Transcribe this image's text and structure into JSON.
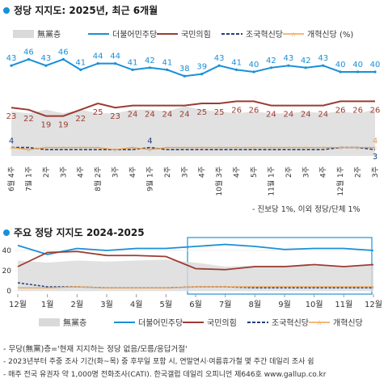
{
  "colors": {
    "no_party": "#d9d9d9",
    "dem": "#1a8fd8",
    "ppp": "#9c3b32",
    "rebuild": "#1f3f7a",
    "reform": "#f0a04b",
    "accent": "#1a8fd8",
    "frame": "#4aa8de"
  },
  "chart1": {
    "title": "정당 지지도: 2025년, 최근 6개월",
    "legend": [
      "無黨층",
      "더불어민주당",
      "국민의힘",
      "조국혁신당",
      "개혁신당 (%)"
    ],
    "weeks": [
      "6월 4주",
      "7월 1주",
      "2주",
      "3주",
      "4주",
      "8월 2주",
      "3주",
      "4주",
      "9월 1주",
      "2주",
      "3주",
      "4주",
      "10월 3주",
      "4주",
      "5주",
      "11월 1주",
      "2주",
      "3주",
      "4주",
      "12월 1주",
      "2주",
      "3주"
    ],
    "dem_labels": [
      "43",
      "46",
      "43",
      "46",
      "41",
      "44",
      "44",
      "41",
      "42",
      "41",
      "38",
      "39",
      "43",
      "41",
      "40",
      "42",
      "43",
      "42",
      "43",
      "40",
      "40"
    ],
    "ppp_labels": [
      "23",
      "22",
      "19",
      "19",
      "22",
      "25",
      "23",
      "24",
      "24",
      "24",
      "24",
      "25",
      "25",
      "26",
      "26",
      "24",
      "24",
      "24",
      "24",
      "26",
      "26"
    ],
    "rebuild_labels": [
      "4",
      "4",
      "3"
    ],
    "reform_labels": [
      "4"
    ],
    "footnote": "- 진보당 1%, 이외 정당/단체 1%"
  },
  "chart2": {
    "title": "주요 정당 지지도 2024-2025",
    "legend": [
      "無黨층",
      "더불어민주당",
      "국민의힘",
      "조국혁신당",
      "개혁신당"
    ],
    "y_ticks": [
      "40",
      "20",
      "0"
    ],
    "months": [
      "12월",
      "1월",
      "2월",
      "3월",
      "4월",
      "5월",
      "6월",
      "7월",
      "8월",
      "9월",
      "10월",
      "11월",
      "12월"
    ]
  },
  "notes": [
    "- 무당(無黨)층='현재 지지하는 정당 없음/모름/응답거절'",
    "- 2023년부터 주중 조사 기간(화~목) 중 후무일 포함 시, 연말연시·여름휴가철 몇 주간 데일리 조사 쉼",
    "- 매주 전국 유권자 약 1,000명 전화조사(CATI). 한국갤럽 데일리 오피니언 제646호 www.gallup.co.kr"
  ],
  "chart_data": [
    {
      "type": "line",
      "title": "정당 지지도: 2025년, 최근 6개월",
      "categories": [
        "6월 4주",
        "7월 1주",
        "7월 2주",
        "7월 3주",
        "7월 4주",
        "8월 2주",
        "8월 3주",
        "8월 4주",
        "9월 1주",
        "9월 2주",
        "9월 3주",
        "9월 4주",
        "10월 3주",
        "10월 4주",
        "10월 5주",
        "11월 1주",
        "11월 2주",
        "11월 3주",
        "11월 4주",
        "12월 1주",
        "12월 2주",
        "12월 3주"
      ],
      "series": [
        {
          "name": "無黨층",
          "type": "area",
          "values": [
            25,
            24,
            26,
            24,
            26,
            24,
            24,
            26,
            26,
            25,
            28,
            26,
            25,
            24,
            25,
            24,
            24,
            25,
            24,
            25,
            24,
            26
          ]
        },
        {
          "name": "더불어민주당",
          "values": [
            43,
            46,
            43,
            46,
            41,
            44,
            44,
            41,
            42,
            41,
            38,
            39,
            43,
            41,
            40,
            42,
            43,
            42,
            43,
            40,
            40,
            40
          ]
        },
        {
          "name": "국민의힘",
          "values": [
            23,
            22,
            19,
            19,
            22,
            25,
            23,
            24,
            24,
            24,
            24,
            25,
            25,
            26,
            26,
            24,
            24,
            24,
            24,
            26,
            26,
            26
          ]
        },
        {
          "name": "조국혁신당",
          "values": [
            4,
            4,
            3,
            3,
            3,
            3,
            3,
            3,
            4,
            3,
            3,
            3,
            3,
            3,
            3,
            3,
            3,
            3,
            3,
            4,
            4,
            3
          ]
        },
        {
          "name": "개혁신당",
          "values": [
            4,
            3,
            4,
            4,
            4,
            4,
            3,
            4,
            3,
            4,
            4,
            4,
            4,
            4,
            4,
            4,
            4,
            4,
            4,
            4,
            4,
            4
          ]
        }
      ],
      "ylim": [
        0,
        60
      ]
    },
    {
      "type": "line",
      "title": "주요 정당 지지도 2024-2025",
      "categories": [
        "12월",
        "1월",
        "2월",
        "3월",
        "4월",
        "5월",
        "6월",
        "7월",
        "8월",
        "9월",
        "10월",
        "11월",
        "12월"
      ],
      "series": [
        {
          "name": "無黨층",
          "type": "area",
          "values": [
            30,
            28,
            30,
            29,
            30,
            31,
            28,
            24,
            25,
            25,
            25,
            24,
            25
          ]
        },
        {
          "name": "더불어민주당",
          "values": [
            45,
            36,
            42,
            40,
            42,
            42,
            44,
            46,
            44,
            41,
            42,
            42,
            40
          ]
        },
        {
          "name": "국민의힘",
          "values": [
            24,
            38,
            39,
            35,
            35,
            34,
            22,
            21,
            24,
            24,
            26,
            24,
            26
          ]
        },
        {
          "name": "조국혁신당",
          "values": [
            8,
            4,
            4,
            3,
            3,
            3,
            4,
            4,
            3,
            3,
            3,
            3,
            3
          ]
        },
        {
          "name": "개혁신당",
          "values": [
            3,
            3,
            4,
            3,
            3,
            3,
            4,
            4,
            4,
            4,
            4,
            4,
            4
          ]
        }
      ],
      "ylim": [
        0,
        50
      ]
    }
  ]
}
